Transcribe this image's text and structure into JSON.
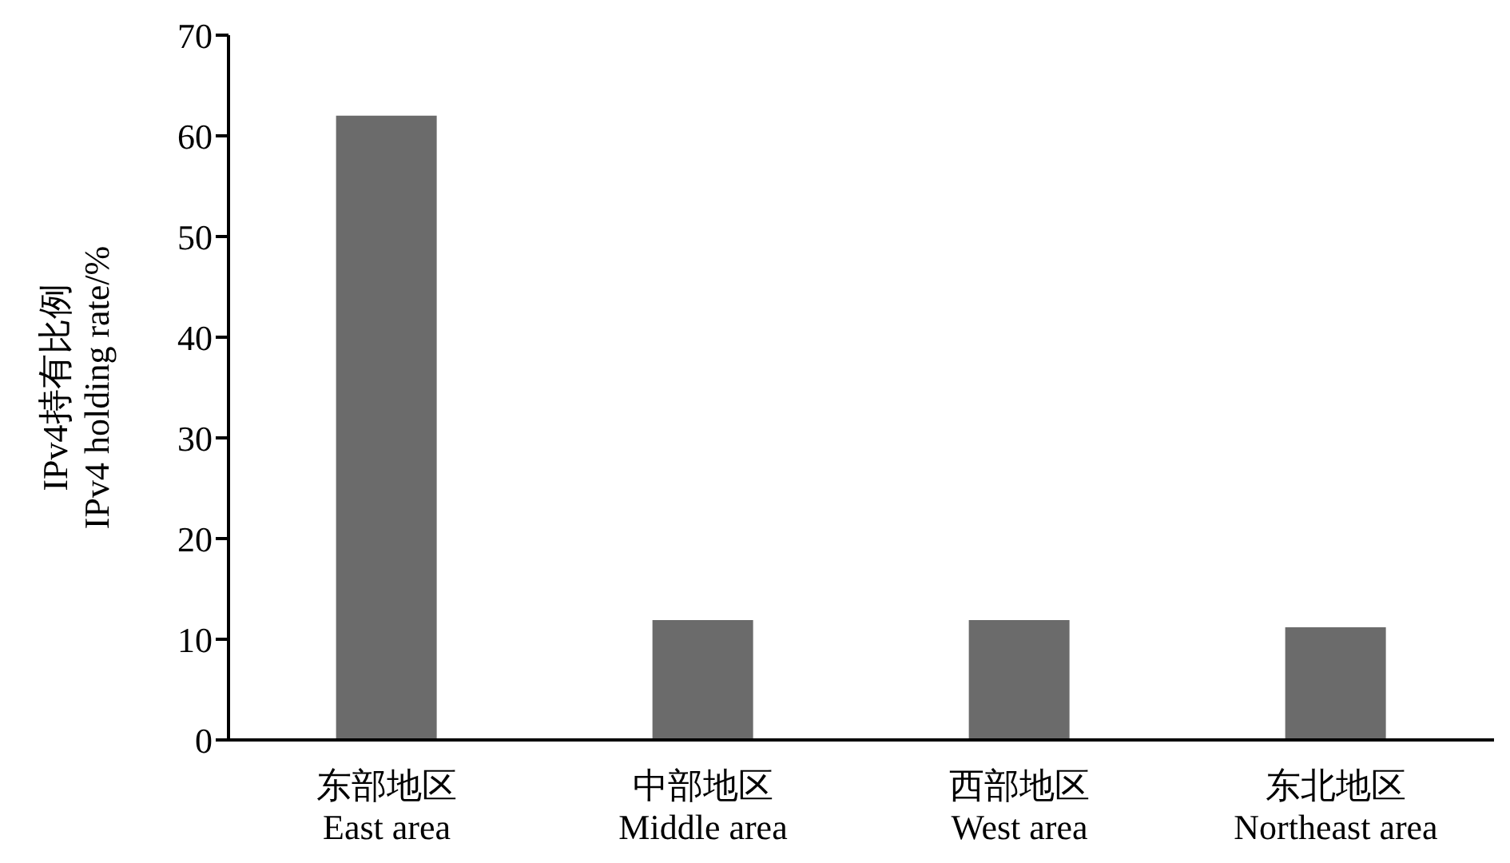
{
  "chart_data": {
    "type": "bar",
    "ylabel": "IPv4持有比例\nIPv4 holding rate/%",
    "categories": [
      "东部地区\nEast area",
      "中部地区\nMiddle area",
      "西部地区\nWest area",
      "东北地区\nNortheast area"
    ],
    "values": [
      62,
      11.9,
      11.9,
      11.2
    ],
    "color": "#6b6b6b",
    "ylim": [
      0,
      70
    ],
    "yticks": [
      0,
      10,
      20,
      30,
      40,
      50,
      60,
      70
    ],
    "grid": false,
    "legend": false
  }
}
